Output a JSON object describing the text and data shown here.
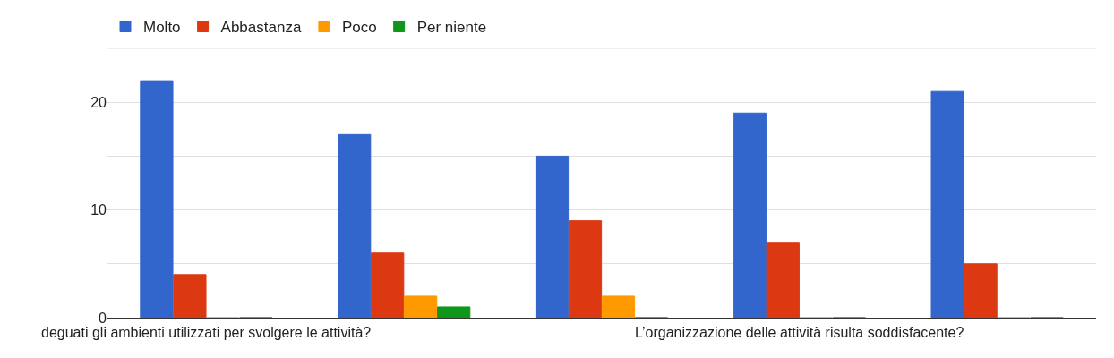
{
  "chart_data": {
    "type": "bar",
    "categories": [
      "deguati gli ambienti utilizzati per svolgere le attività?",
      null,
      null,
      "L’organizzazione delle attività risulta soddisfacente?",
      null
    ],
    "series": [
      {
        "name": "Molto",
        "color": "#3366cc",
        "values": [
          22,
          17,
          15,
          19,
          21
        ]
      },
      {
        "name": "Abbastanza",
        "color": "#dc3912",
        "values": [
          4,
          6,
          9,
          7,
          5
        ]
      },
      {
        "name": "Poco",
        "color": "#ff9900",
        "values": [
          0,
          2,
          2,
          0,
          0
        ]
      },
      {
        "name": "Per niente",
        "color": "#109618",
        "values": [
          0,
          1,
          0,
          0,
          0
        ]
      }
    ],
    "ylim": [
      0,
      25
    ],
    "yticks": [
      0,
      {
        "value": 5,
        "label": null
      },
      10,
      {
        "value": 15,
        "label": null
      },
      20,
      {
        "value": 25,
        "label": null
      }
    ],
    "grid": "y",
    "legend": "top left"
  }
}
